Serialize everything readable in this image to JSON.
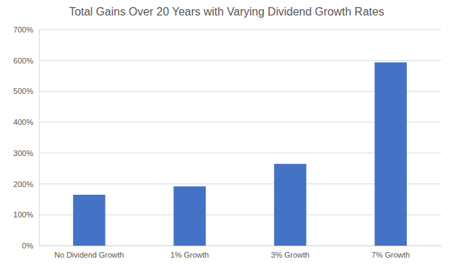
{
  "chart_data": {
    "type": "bar",
    "title": "Total Gains Over 20 Years with Varying Dividend Growth Rates",
    "categories": [
      "No Dividend Growth",
      "1% Growth",
      "3% Growth",
      "7% Growth"
    ],
    "values": [
      165,
      192,
      265,
      594
    ],
    "color": "#4472c4",
    "ylim": [
      0,
      700
    ],
    "yticks": [
      {
        "value": 0,
        "label": "0%"
      },
      {
        "value": 100,
        "label": "100%"
      },
      {
        "value": 200,
        "label": "200%"
      },
      {
        "value": 300,
        "label": "300%"
      },
      {
        "value": 400,
        "label": "400%"
      },
      {
        "value": 500,
        "label": "500%"
      },
      {
        "value": 600,
        "label": "600%"
      },
      {
        "value": 700,
        "label": "700%"
      }
    ],
    "grid": true
  }
}
